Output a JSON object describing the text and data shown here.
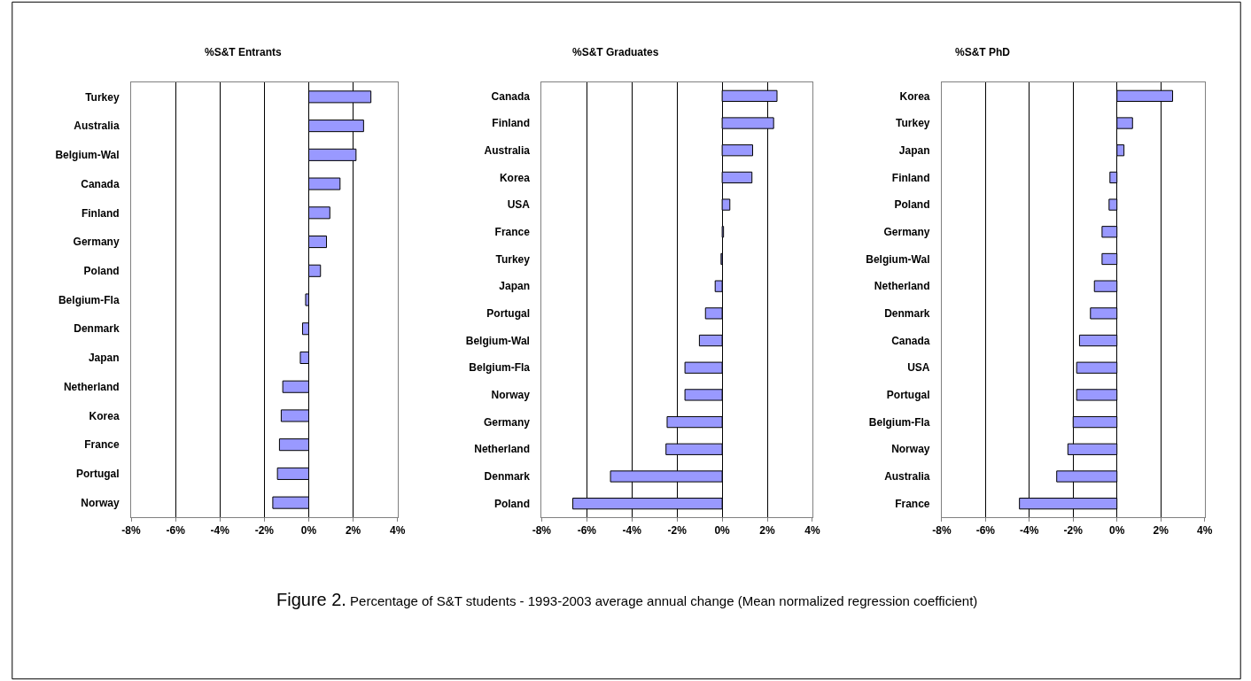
{
  "chart_data": [
    {
      "type": "bar",
      "orientation": "horizontal",
      "title": "%S&T Entrants",
      "color": "#9999ff",
      "grid": "x",
      "xlim": [
        -8,
        4
      ],
      "xticks": [
        {
          "value": -8,
          "label": "-8%"
        },
        {
          "value": -6,
          "label": "-6%"
        },
        {
          "value": -4,
          "label": "-4%"
        },
        {
          "value": -2,
          "label": "-2%"
        },
        {
          "value": 0,
          "label": "0%"
        },
        {
          "value": 2,
          "label": "2%"
        },
        {
          "value": 4,
          "label": "4%"
        }
      ],
      "categories": [
        "Turkey",
        "Australia",
        "Belgium-Wal",
        "Canada",
        "Finland",
        "Germany",
        "Poland",
        "Belgium-Fla",
        "Denmark",
        "Japan",
        "Netherland",
        "Korea",
        "France",
        "Portugal",
        "Norway"
      ],
      "values": [
        2.8,
        2.47,
        2.13,
        1.41,
        0.95,
        0.8,
        0.53,
        -0.14,
        -0.28,
        -0.38,
        -1.17,
        -1.24,
        -1.32,
        -1.41,
        -1.62
      ]
    },
    {
      "type": "bar",
      "orientation": "horizontal",
      "title": "%S&T Graduates",
      "color": "#9999ff",
      "grid": "x",
      "xlim": [
        -8,
        4
      ],
      "xticks": [
        {
          "value": -8,
          "label": "-8%"
        },
        {
          "value": -6,
          "label": "-6%"
        },
        {
          "value": -4,
          "label": "-4%"
        },
        {
          "value": -2,
          "label": "-2%"
        },
        {
          "value": 0,
          "label": "0%"
        },
        {
          "value": 2,
          "label": "2%"
        },
        {
          "value": 4,
          "label": "4%"
        }
      ],
      "categories": [
        "Canada",
        "Finland",
        "Australia",
        "Korea",
        "USA",
        "France",
        "Turkey",
        "Japan",
        "Portugal",
        "Belgium-Wal",
        "Belgium-Fla",
        "Norway",
        "Germany",
        "Netherland",
        "Denmark",
        "Poland"
      ],
      "values": [
        2.43,
        2.28,
        1.35,
        1.32,
        0.34,
        0.06,
        -0.05,
        -0.31,
        -0.74,
        -1.01,
        -1.65,
        -1.65,
        -2.44,
        -2.49,
        -4.95,
        -6.62
      ],
      "annotations": [
        "Figure 2.",
        "Percentage of S&T students - 1993-2003 average annual change (Mean normalized regression coefficient)"
      ]
    },
    {
      "type": "bar",
      "orientation": "horizontal",
      "title": "%S&T PhD",
      "color": "#9999ff",
      "grid": "x",
      "xlim": [
        -8,
        4
      ],
      "xticks": [
        {
          "value": -8,
          "label": "-8%"
        },
        {
          "value": -6,
          "label": "-6%"
        },
        {
          "value": -4,
          "label": "-4%"
        },
        {
          "value": -2,
          "label": "-2%"
        },
        {
          "value": 0,
          "label": "0%"
        },
        {
          "value": 2,
          "label": "2%"
        },
        {
          "value": 4,
          "label": "4%"
        }
      ],
      "categories": [
        "Korea",
        "Turkey",
        "Japan",
        "Finland",
        "Poland",
        "Germany",
        "Belgium-Wal",
        "Netherland",
        "Denmark",
        "Canada",
        "USA",
        "Portugal",
        "Belgium-Fla",
        "Norway",
        "Australia",
        "France"
      ],
      "values": [
        2.54,
        0.71,
        0.32,
        -0.32,
        -0.36,
        -0.68,
        -0.68,
        -1.03,
        -1.21,
        -1.71,
        -1.84,
        -1.84,
        -2.0,
        -2.24,
        -2.75,
        -4.45
      ]
    }
  ]
}
